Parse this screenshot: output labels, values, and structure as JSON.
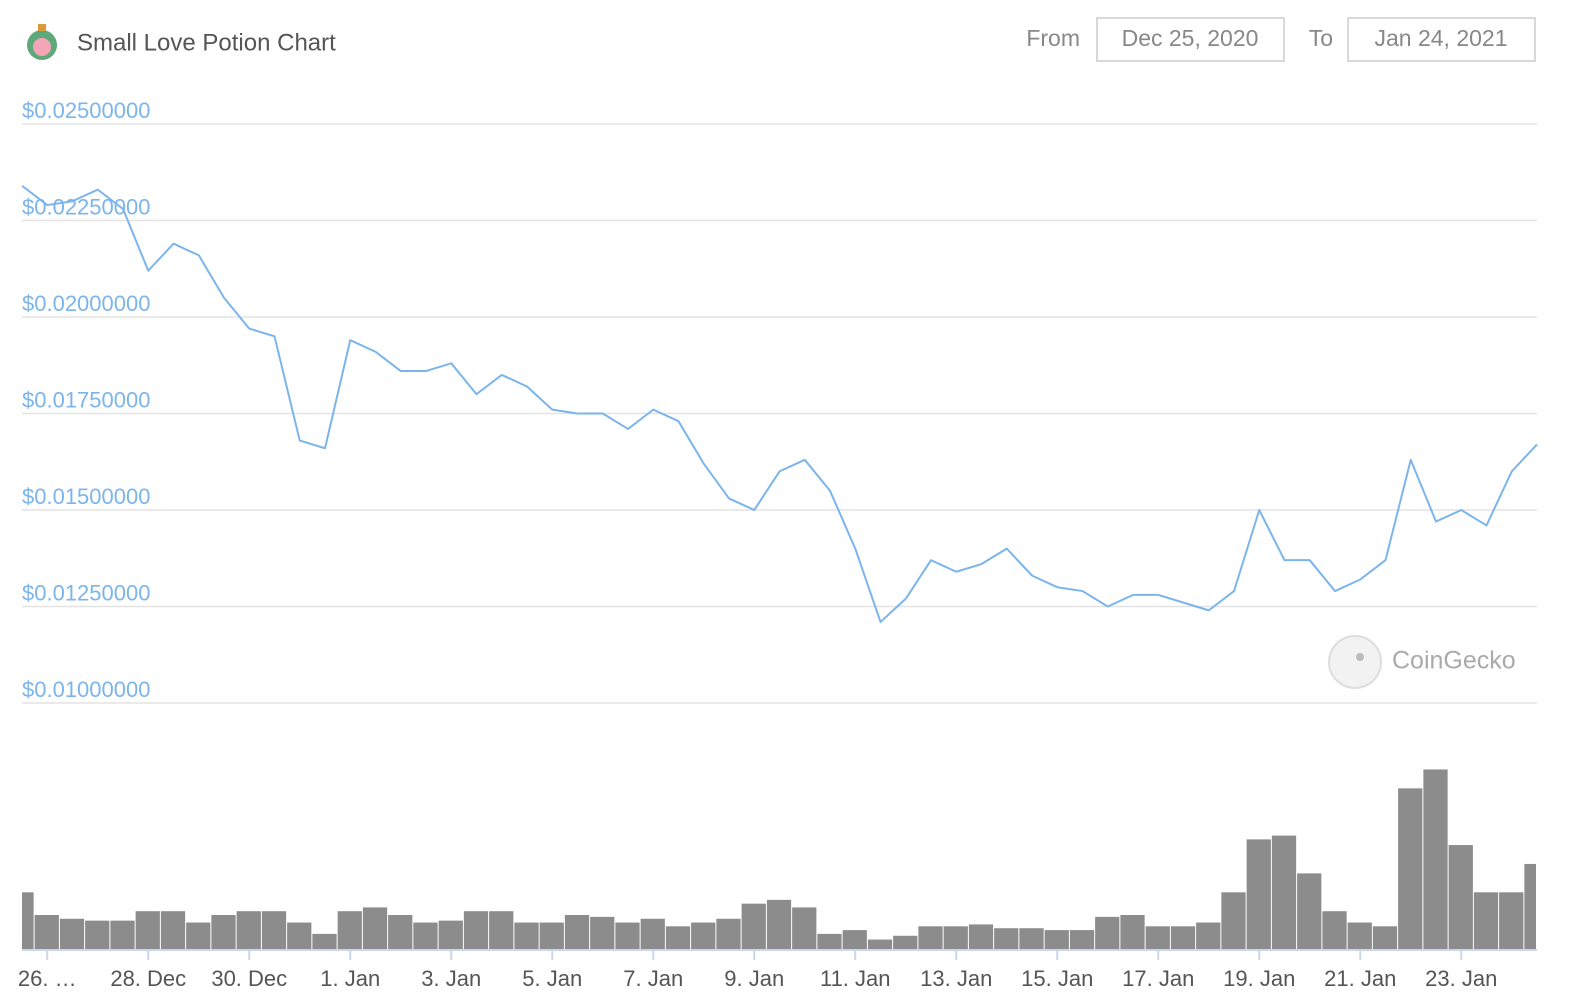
{
  "chart_data": {
    "type": "line",
    "title": "Small Love Potion Chart",
    "date_range": {
      "from_label": "From",
      "from": "Dec 25, 2020",
      "to_label": "To",
      "to": "Jan 24, 2021"
    },
    "watermark": "CoinGecko",
    "categories": [
      null,
      "26. …",
      null,
      null,
      null,
      "28. Dec",
      null,
      null,
      null,
      "30. Dec",
      null,
      null,
      null,
      "1. Jan",
      null,
      null,
      null,
      "3. Jan",
      null,
      null,
      null,
      "5. Jan",
      null,
      null,
      null,
      "7. Jan",
      null,
      null,
      null,
      "9. Jan",
      null,
      null,
      null,
      "11. Jan",
      null,
      null,
      null,
      "13. Jan",
      null,
      null,
      null,
      "15. Jan",
      null,
      null,
      null,
      "17. Jan",
      null,
      null,
      null,
      "19. Jan",
      null,
      null,
      null,
      "21. Jan",
      null,
      null,
      null,
      "23. Jan",
      null,
      null,
      null
    ],
    "series": [
      {
        "type": "line",
        "color": "#7cb5ec",
        "values": [
          0.0234,
          0.0229,
          0.023,
          0.0233,
          0.0228,
          0.0212,
          0.0219,
          0.0216,
          0.0205,
          0.0197,
          0.0195,
          0.0168,
          0.0166,
          0.0194,
          0.0191,
          0.0186,
          0.0186,
          0.0188,
          0.018,
          0.0185,
          0.0182,
          0.0176,
          0.0175,
          0.0175,
          0.0171,
          0.0176,
          0.0173,
          0.0162,
          0.0153,
          0.015,
          0.016,
          0.0163,
          0.0155,
          0.014,
          0.0121,
          0.0127,
          0.0137,
          0.0134,
          0.0136,
          0.014,
          0.0133,
          0.013,
          0.0129,
          0.0125,
          0.0128,
          0.0128,
          0.0126,
          0.0124,
          0.0129,
          0.015,
          0.0137,
          0.0137,
          0.0129,
          0.0132,
          0.0137,
          0.0163,
          0.0147,
          0.015,
          0.0146,
          0.016,
          0.0167
        ]
      },
      {
        "type": "bar",
        "axis": "y2",
        "color": "#8c8c8c",
        "values": [
          30,
          18,
          16,
          15,
          15,
          20,
          20,
          14,
          18,
          20,
          20,
          14,
          8,
          20,
          22,
          18,
          14,
          15,
          20,
          20,
          14,
          14,
          18,
          17,
          14,
          16,
          12,
          14,
          16,
          24,
          26,
          22,
          8,
          10,
          5,
          7,
          12,
          12,
          13,
          11,
          11,
          10,
          10,
          17,
          18,
          12,
          12,
          14,
          30,
          58,
          60,
          40,
          20,
          14,
          12,
          85,
          95,
          55,
          30,
          30,
          45
        ]
      }
    ],
    "ylim": [
      0.01,
      0.025
    ],
    "yticks": [
      {
        "value": 0.01,
        "label": "$0.01000000"
      },
      {
        "value": 0.0125,
        "label": "$0.01250000"
      },
      {
        "value": 0.015,
        "label": "$0.01500000"
      },
      {
        "value": 0.0175,
        "label": "$0.01750000"
      },
      {
        "value": 0.02,
        "label": "$0.02000000"
      },
      {
        "value": 0.0225,
        "label": "$0.02250000"
      },
      {
        "value": 0.025,
        "label": "$0.02500000"
      }
    ],
    "y2lim": [
      0,
      100
    ],
    "grid": true
  }
}
